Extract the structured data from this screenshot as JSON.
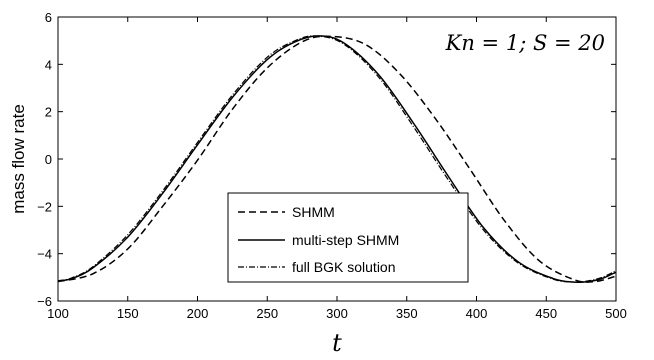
{
  "chart_data": {
    "type": "line",
    "title": "",
    "xlabel": "t",
    "ylabel": "mass flow rate",
    "annotation": "Kn = 1; S = 20",
    "xlim": [
      100,
      500
    ],
    "ylim": [
      -6,
      6
    ],
    "xticks": [
      "100",
      "150",
      "200",
      "250",
      "300",
      "350",
      "400",
      "450",
      "500"
    ],
    "yticks": [
      "6",
      "4",
      "2",
      "0",
      "−2",
      "−4",
      "−6"
    ],
    "grid": false,
    "legend_position": "bottom-center",
    "series": [
      {
        "name": "SHMM",
        "style": "dashed",
        "x": [
          100,
          125,
          150,
          175,
          200,
          225,
          250,
          275,
          295,
          320,
          345,
          370,
          395,
          420,
          445,
          470,
          485,
          500
        ],
        "y": [
          -5.18,
          -4.85,
          -3.8,
          -2.0,
          -0.05,
          2.1,
          3.85,
          4.95,
          5.18,
          4.85,
          3.6,
          1.75,
          -0.4,
          -2.6,
          -4.3,
          -5.1,
          -5.18,
          -4.95
        ]
      },
      {
        "name": "multi-step SHMM",
        "style": "solid",
        "x": [
          100,
          110,
          125,
          150,
          175,
          200,
          225,
          250,
          270,
          287,
          305,
          330,
          355,
          380,
          405,
          430,
          455,
          470,
          480,
          490,
          500
        ],
        "y": [
          -5.15,
          -5.05,
          -4.6,
          -3.3,
          -1.45,
          0.6,
          2.6,
          4.2,
          4.95,
          5.2,
          4.9,
          3.55,
          1.5,
          -0.75,
          -2.9,
          -4.35,
          -5.05,
          -5.2,
          -5.18,
          -5.05,
          -4.78
        ]
      },
      {
        "name": "full BGK solution",
        "style": "dashdot",
        "x": [
          100,
          110,
          125,
          150,
          175,
          200,
          225,
          250,
          270,
          285,
          305,
          330,
          355,
          380,
          405,
          430,
          455,
          470,
          480,
          490,
          500
        ],
        "y": [
          -5.15,
          -5.02,
          -4.55,
          -3.2,
          -1.35,
          0.7,
          2.7,
          4.3,
          5.0,
          5.2,
          4.85,
          3.45,
          1.35,
          -0.9,
          -3.0,
          -4.4,
          -5.08,
          -5.2,
          -5.15,
          -5.0,
          -4.72
        ]
      }
    ]
  }
}
